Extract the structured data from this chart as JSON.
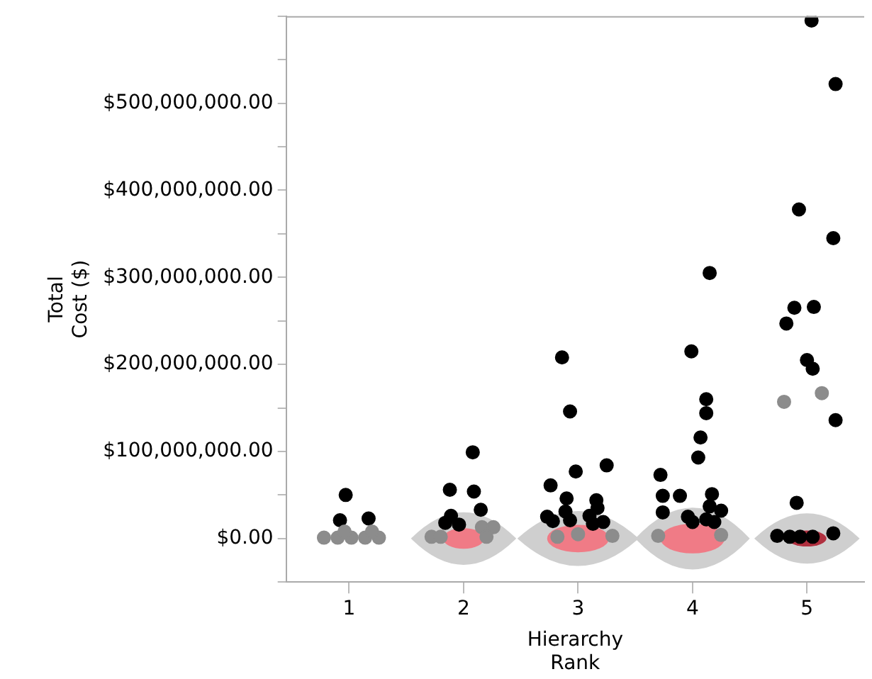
{
  "chart_data": {
    "type": "scatter",
    "xlabel": "Hierarchy\nRank",
    "ylabel": "Total\nCost ($)",
    "xlim": [
      0.45,
      5.5
    ],
    "xticks": [
      1,
      2,
      3,
      4,
      5
    ],
    "ylim": [
      -50000000,
      600000000
    ],
    "yticks": [
      {
        "value": -50000000,
        "label": null
      },
      {
        "value": 0,
        "label": "$0.00"
      },
      {
        "value": 50000000,
        "label": null
      },
      {
        "value": 100000000,
        "label": "$100,000,000.00"
      },
      {
        "value": 150000000,
        "label": null
      },
      {
        "value": 200000000,
        "label": "$200,000,000.00"
      },
      {
        "value": 250000000,
        "label": null
      },
      {
        "value": 300000000,
        "label": "$300,000,000.00"
      },
      {
        "value": 350000000,
        "label": null
      },
      {
        "value": 400000000,
        "label": "$400,000,000.00"
      },
      {
        "value": 450000000,
        "label": null
      },
      {
        "value": 500000000,
        "label": "$500,000,000.00"
      },
      {
        "value": 550000000,
        "label": null
      },
      {
        "value": 600000000,
        "label": null
      }
    ],
    "grid": false,
    "legend": false,
    "marker": "circle",
    "series": [
      {
        "color": "#8c8c8c",
        "x": [
          0.78,
          0.9,
          1.02,
          1.14,
          1.26,
          0.96,
          1.2,
          1.72,
          1.8,
          2.16,
          2.26,
          2.2,
          2.82,
          3.0,
          3.3,
          3.7,
          4.25,
          4.8,
          5.13
        ],
        "values": [
          1000000,
          1000000,
          1000000,
          1000000,
          1000000,
          8000000,
          8000000,
          2000000,
          2000000,
          13000000,
          13000000,
          2000000,
          2000000,
          5000000,
          3000000,
          3000000,
          4000000,
          157000000,
          167000000
        ]
      },
      {
        "color": "#000000",
        "x": [
          0.97,
          0.92,
          1.17,
          1.88,
          2.08,
          2.09,
          2.15,
          1.89,
          1.84,
          1.96,
          2.86,
          2.93,
          2.98,
          3.25,
          2.76,
          2.9,
          3.16,
          3.17,
          2.89,
          2.73,
          2.78,
          2.93,
          3.1,
          3.22,
          3.13,
          4.15,
          3.99,
          4.12,
          4.12,
          4.07,
          4.05,
          3.72,
          3.74,
          3.89,
          4.17,
          4.15,
          4.25,
          3.74,
          3.96,
          4.0,
          4.12,
          4.19,
          5.04,
          5.25,
          4.93,
          5.23,
          4.89,
          5.06,
          4.82,
          5.0,
          5.05,
          5.25,
          4.91,
          4.74,
          4.85,
          4.94,
          5.05,
          5.23
        ],
        "values": [
          50000000,
          21000000,
          23000000,
          56000000,
          99000000,
          54000000,
          33000000,
          26000000,
          18000000,
          16000000,
          208000000,
          146000000,
          77000000,
          84000000,
          61000000,
          46000000,
          44000000,
          35000000,
          31000000,
          25000000,
          20000000,
          21000000,
          26000000,
          19000000,
          17000000,
          305000000,
          215000000,
          160000000,
          144000000,
          116000000,
          93000000,
          73000000,
          49000000,
          49000000,
          51000000,
          37000000,
          32000000,
          30000000,
          25000000,
          19000000,
          22000000,
          19000000,
          595000000,
          522000000,
          378000000,
          345000000,
          265000000,
          266000000,
          247000000,
          205000000,
          195000000,
          136000000,
          41000000,
          3000000,
          2000000,
          2000000,
          2000000,
          6000000
        ]
      }
    ]
  }
}
